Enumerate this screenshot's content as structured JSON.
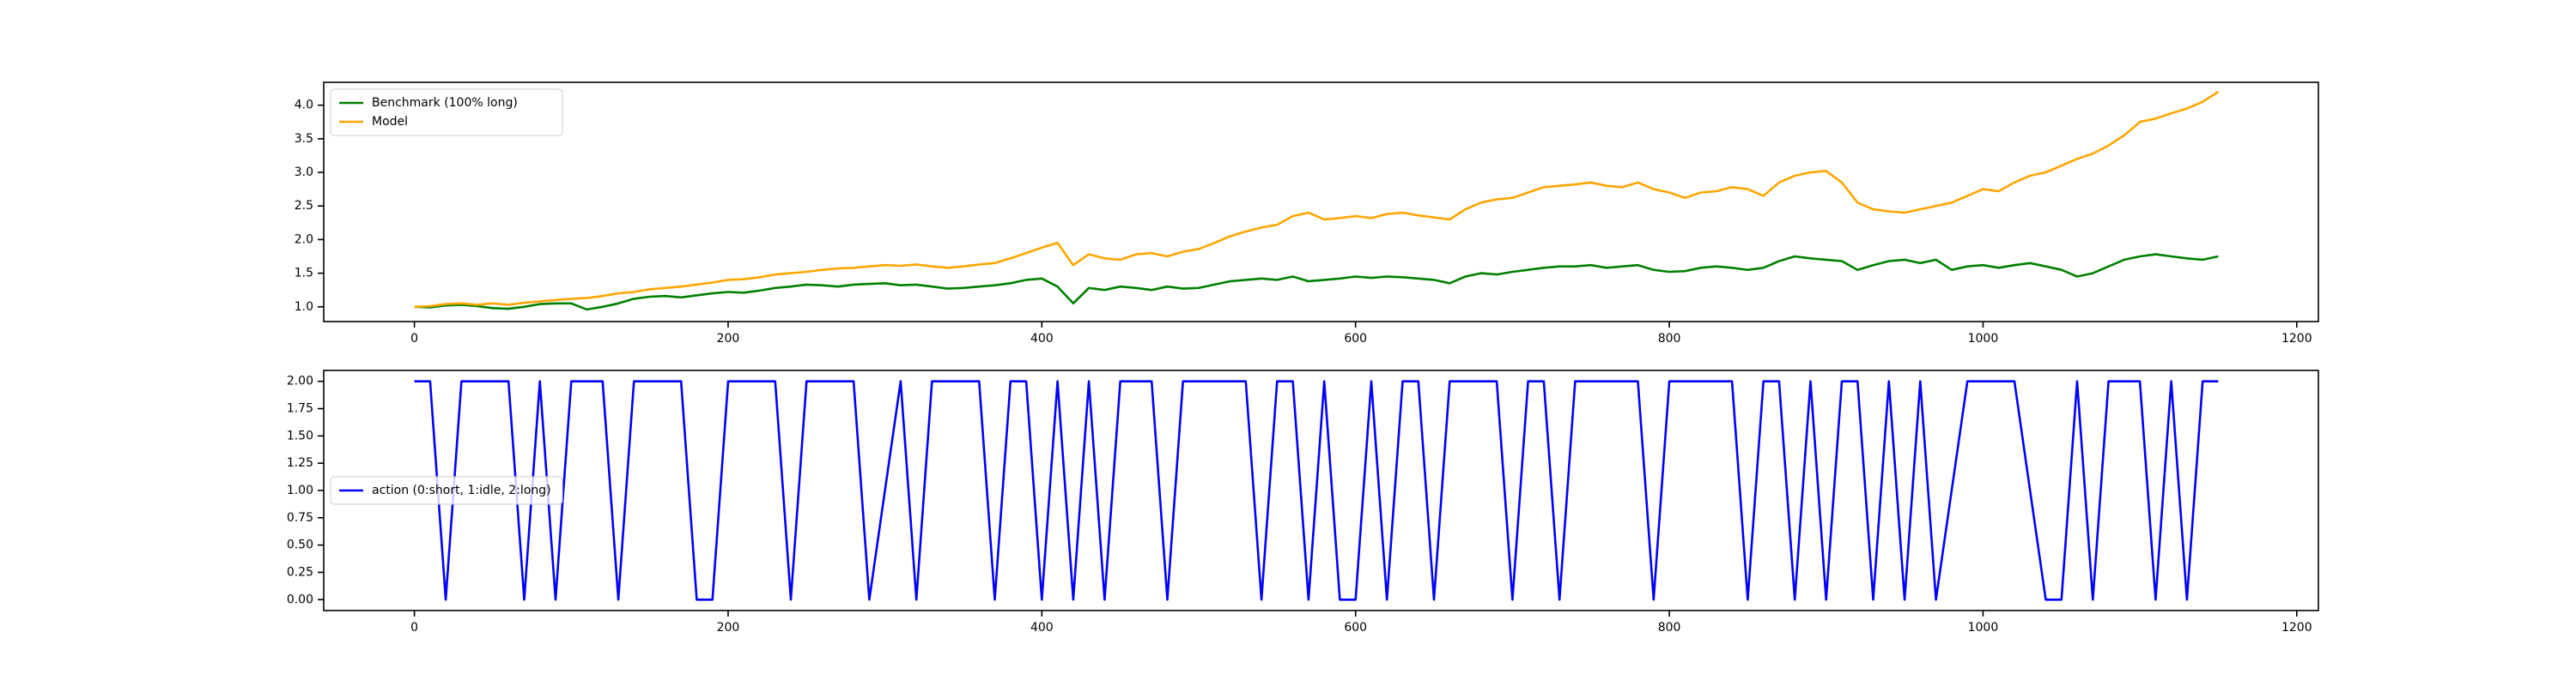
{
  "chart_data": [
    {
      "type": "line",
      "legend": "upper left",
      "x": [
        0,
        10,
        20,
        30,
        40,
        50,
        60,
        70,
        80,
        90,
        100,
        110,
        120,
        130,
        140,
        150,
        160,
        170,
        180,
        190,
        200,
        210,
        220,
        230,
        240,
        250,
        260,
        270,
        280,
        290,
        300,
        310,
        320,
        330,
        340,
        350,
        360,
        370,
        380,
        390,
        400,
        410,
        420,
        430,
        440,
        450,
        460,
        470,
        480,
        490,
        500,
        510,
        520,
        530,
        540,
        550,
        560,
        570,
        580,
        590,
        600,
        610,
        620,
        630,
        640,
        650,
        660,
        670,
        680,
        690,
        700,
        710,
        720,
        730,
        740,
        750,
        760,
        770,
        780,
        790,
        800,
        810,
        820,
        830,
        840,
        850,
        860,
        870,
        880,
        890,
        900,
        910,
        920,
        930,
        940,
        950,
        960,
        970,
        980,
        990,
        1000,
        1010,
        1020,
        1030,
        1040,
        1050,
        1060,
        1070,
        1080,
        1090,
        1100,
        1110,
        1120,
        1130,
        1140,
        1150
      ],
      "series": [
        {
          "name": "Benchmark (100% long)",
          "color": "green",
          "values": [
            1.0,
            0.99,
            1.02,
            1.03,
            1.01,
            0.98,
            0.97,
            1.0,
            1.04,
            1.05,
            1.05,
            0.96,
            1.0,
            1.05,
            1.12,
            1.15,
            1.16,
            1.14,
            1.17,
            1.2,
            1.22,
            1.21,
            1.24,
            1.28,
            1.3,
            1.33,
            1.32,
            1.3,
            1.33,
            1.34,
            1.35,
            1.32,
            1.33,
            1.3,
            1.27,
            1.28,
            1.3,
            1.32,
            1.35,
            1.4,
            1.42,
            1.3,
            1.05,
            1.28,
            1.25,
            1.3,
            1.28,
            1.25,
            1.3,
            1.27,
            1.28,
            1.33,
            1.38,
            1.4,
            1.42,
            1.4,
            1.45,
            1.38,
            1.4,
            1.42,
            1.45,
            1.43,
            1.45,
            1.44,
            1.42,
            1.4,
            1.35,
            1.45,
            1.5,
            1.48,
            1.52,
            1.55,
            1.58,
            1.6,
            1.6,
            1.62,
            1.58,
            1.6,
            1.62,
            1.55,
            1.52,
            1.53,
            1.58,
            1.6,
            1.58,
            1.55,
            1.58,
            1.68,
            1.75,
            1.72,
            1.7,
            1.68,
            1.55,
            1.62,
            1.68,
            1.7,
            1.65,
            1.7,
            1.55,
            1.6,
            1.62,
            1.58,
            1.62,
            1.65,
            1.6,
            1.55,
            1.45,
            1.5,
            1.6,
            1.7,
            1.75,
            1.78,
            1.75,
            1.72,
            1.7,
            1.75
          ]
        },
        {
          "name": "Model",
          "color": "orange",
          "values": [
            1.0,
            1.01,
            1.04,
            1.05,
            1.03,
            1.05,
            1.03,
            1.06,
            1.08,
            1.1,
            1.12,
            1.13,
            1.16,
            1.2,
            1.22,
            1.26,
            1.28,
            1.3,
            1.33,
            1.36,
            1.4,
            1.41,
            1.44,
            1.48,
            1.5,
            1.52,
            1.55,
            1.57,
            1.58,
            1.6,
            1.62,
            1.61,
            1.63,
            1.6,
            1.58,
            1.6,
            1.63,
            1.65,
            1.72,
            1.8,
            1.88,
            1.95,
            1.62,
            1.78,
            1.72,
            1.7,
            1.78,
            1.8,
            1.75,
            1.82,
            1.86,
            1.95,
            2.05,
            2.12,
            2.18,
            2.22,
            2.35,
            2.4,
            2.3,
            2.32,
            2.35,
            2.32,
            2.38,
            2.4,
            2.36,
            2.33,
            2.3,
            2.45,
            2.55,
            2.6,
            2.62,
            2.7,
            2.78,
            2.8,
            2.82,
            2.85,
            2.8,
            2.78,
            2.85,
            2.75,
            2.7,
            2.62,
            2.7,
            2.72,
            2.78,
            2.75,
            2.65,
            2.85,
            2.95,
            3.0,
            3.02,
            2.85,
            2.55,
            2.45,
            2.42,
            2.4,
            2.45,
            2.5,
            2.55,
            2.65,
            2.75,
            2.72,
            2.85,
            2.95,
            3.0,
            3.1,
            3.2,
            3.28,
            3.4,
            3.55,
            3.75,
            3.8,
            3.88,
            3.95,
            4.05,
            4.2
          ]
        }
      ],
      "xlim": [
        -57.8,
        1213.8
      ],
      "xticks": [
        0,
        200,
        400,
        600,
        800,
        1000,
        1200
      ],
      "ylim": [
        0.78,
        4.34
      ],
      "yticks": [
        {
          "value": 1,
          "label": "1.0"
        },
        1.5,
        {
          "value": 2,
          "label": "2.0"
        },
        2.5,
        {
          "value": 3,
          "label": "3.0"
        },
        3.5,
        {
          "value": 4,
          "label": "4.0"
        }
      ]
    },
    {
      "type": "line",
      "legend": "center left",
      "x": [
        0,
        10,
        20,
        30,
        40,
        50,
        60,
        70,
        80,
        90,
        100,
        110,
        120,
        130,
        140,
        150,
        160,
        170,
        180,
        190,
        200,
        210,
        220,
        230,
        240,
        250,
        260,
        270,
        280,
        290,
        300,
        310,
        320,
        330,
        340,
        350,
        360,
        370,
        380,
        390,
        400,
        410,
        420,
        430,
        440,
        450,
        460,
        470,
        480,
        490,
        500,
        510,
        520,
        530,
        540,
        550,
        560,
        570,
        580,
        590,
        600,
        610,
        620,
        630,
        640,
        650,
        660,
        670,
        680,
        690,
        700,
        710,
        720,
        730,
        740,
        750,
        760,
        770,
        780,
        790,
        800,
        810,
        820,
        830,
        840,
        850,
        860,
        870,
        880,
        890,
        900,
        910,
        920,
        930,
        940,
        950,
        960,
        970,
        980,
        990,
        1000,
        1010,
        1020,
        1030,
        1040,
        1050,
        1060,
        1070,
        1080,
        1090,
        1100,
        1110,
        1120,
        1130,
        1140,
        1150
      ],
      "series": [
        {
          "name": "action (0:short, 1:idle, 2:long)",
          "color": "blue",
          "values": [
            2,
            2,
            0,
            2,
            2,
            2,
            2,
            0,
            2,
            0,
            2,
            2,
            2,
            0,
            2,
            2,
            2,
            2,
            0,
            0,
            2,
            2,
            2,
            2,
            0,
            2,
            2,
            2,
            2,
            0,
            1,
            2,
            0,
            2,
            2,
            2,
            2,
            0,
            2,
            2,
            0,
            2,
            0,
            2,
            0,
            2,
            2,
            2,
            0,
            2,
            2,
            2,
            2,
            2,
            0,
            2,
            2,
            0,
            2,
            0,
            0,
            2,
            0,
            2,
            2,
            0,
            2,
            2,
            2,
            2,
            0,
            2,
            2,
            0,
            2,
            2,
            2,
            2,
            2,
            0,
            2,
            2,
            2,
            2,
            2,
            0,
            2,
            2,
            0,
            2,
            0,
            2,
            2,
            0,
            2,
            0,
            2,
            0,
            1,
            2,
            2,
            2,
            2,
            1,
            0,
            0,
            2,
            0,
            2,
            2,
            2,
            0,
            2,
            0,
            2,
            2
          ]
        }
      ],
      "xlim": [
        -57.8,
        1213.8
      ],
      "xticks": [
        0,
        200,
        400,
        600,
        800,
        1000,
        1200
      ],
      "ylim": [
        -0.1,
        2.1
      ],
      "yticks": [
        {
          "value": 0,
          "label": "0.00"
        },
        {
          "value": 0.25,
          "label": "0.25"
        },
        {
          "value": 0.5,
          "label": "0.50"
        },
        {
          "value": 0.75,
          "label": "0.75"
        },
        {
          "value": 1,
          "label": "1.00"
        },
        {
          "value": 1.25,
          "label": "1.25"
        },
        {
          "value": 1.5,
          "label": "1.50"
        },
        {
          "value": 1.75,
          "label": "1.75"
        },
        {
          "value": 2,
          "label": "2.00"
        }
      ]
    }
  ]
}
